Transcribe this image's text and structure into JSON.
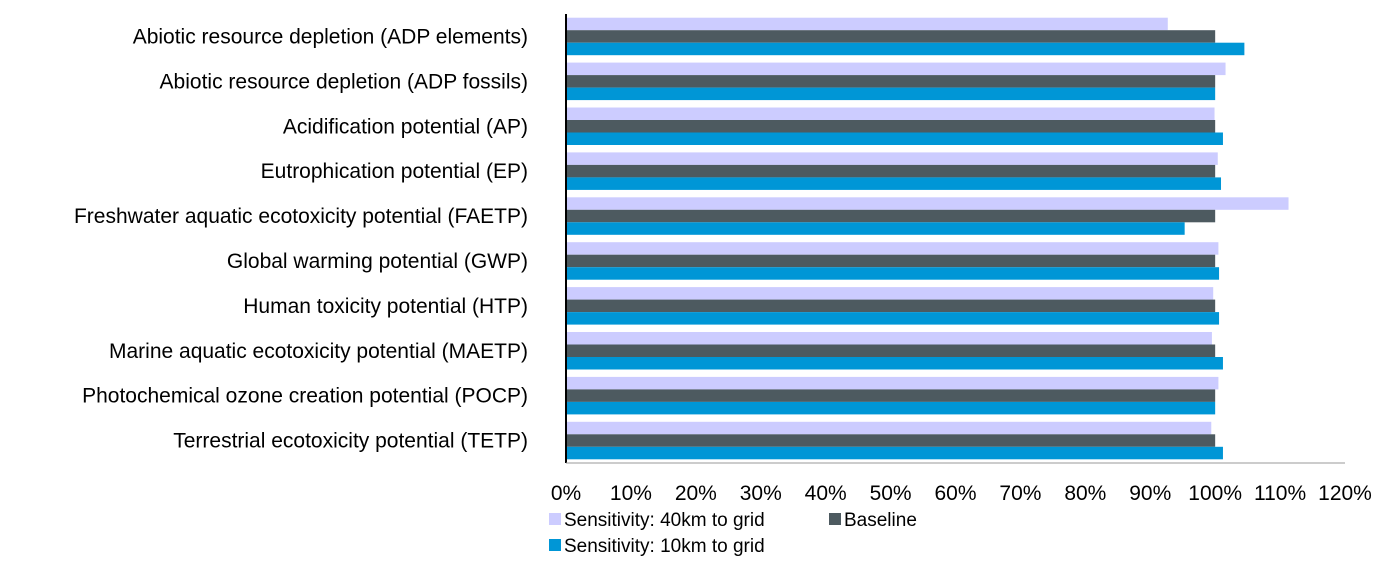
{
  "chart_data": {
    "type": "bar",
    "orientation": "horizontal",
    "title": "",
    "xlabel": "",
    "ylabel": "",
    "xlim": [
      0,
      120
    ],
    "x_ticks": [
      "0%",
      "10%",
      "20%",
      "30%",
      "40%",
      "50%",
      "60%",
      "70%",
      "80%",
      "90%",
      "100%",
      "110%",
      "120%"
    ],
    "grid": false,
    "legend_position": "bottom-left",
    "categories": [
      "Abiotic resource depletion (ADP elements)",
      "Abiotic resource depletion (ADP fossils)",
      "Acidification potential (AP)",
      "Eutrophication potential (EP)",
      "Freshwater aquatic ecotoxicity potential (FAETP)",
      "Global warming potential (GWP)",
      "Human toxicity potential (HTP)",
      "Marine aquatic ecotoxicity potential (MAETP)",
      "Photochemical ozone creation potential (POCP)",
      "Terrestrial ecotoxicity potential (TETP)"
    ],
    "series": [
      {
        "name": "Sensitivity: 40km to grid",
        "color": "#ccccff",
        "values": [
          92.7,
          101.6,
          99.9,
          100.4,
          111.3,
          100.5,
          99.7,
          99.5,
          100.5,
          99.4
        ]
      },
      {
        "name": "Baseline",
        "color": "#4d5a60",
        "values": [
          100,
          100,
          100,
          100,
          100,
          100,
          100,
          100,
          100,
          100
        ]
      },
      {
        "name": "Sensitivity: 10km to grid",
        "color": "#0096d6",
        "values": [
          104.5,
          100,
          101.2,
          100.9,
          95.3,
          100.6,
          100.6,
          101.2,
          100,
          101.2
        ]
      }
    ]
  }
}
